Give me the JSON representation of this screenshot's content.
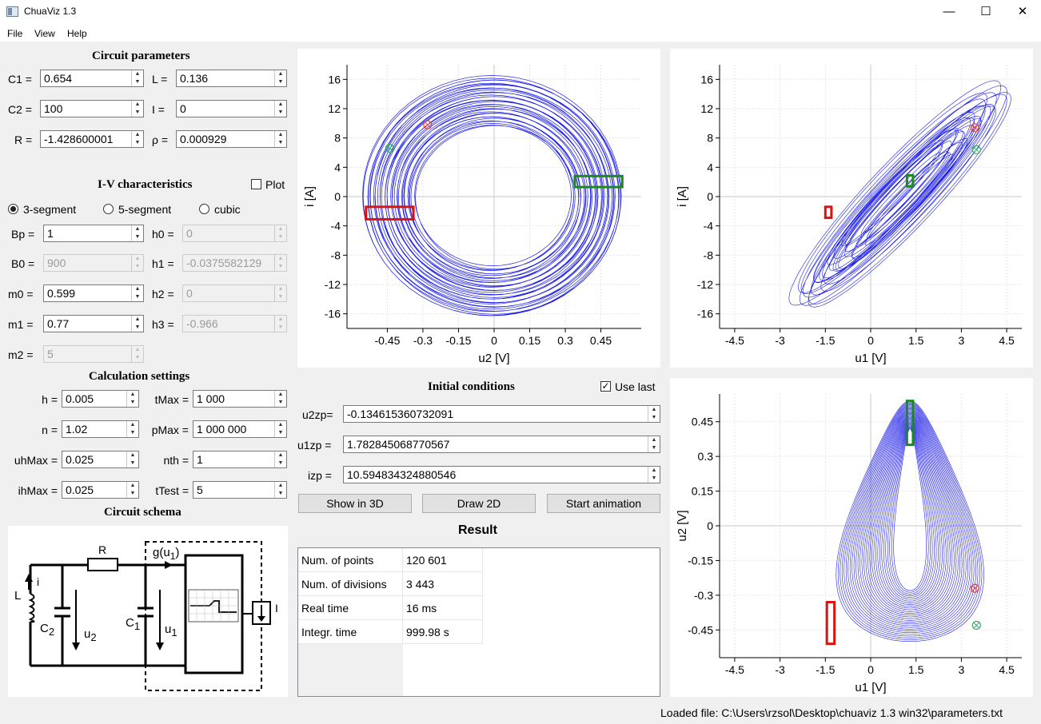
{
  "window": {
    "title": "ChuaViz 1.3",
    "minimize": "—",
    "maximize": "☐",
    "close": "✕"
  },
  "menu": [
    "File",
    "View",
    "Help"
  ],
  "circuit": {
    "heading": "Circuit parameters",
    "c1": {
      "label": "C1 =",
      "value": "0.654"
    },
    "l": {
      "label": "L =",
      "value": "0.136"
    },
    "c2": {
      "label": "C2 =",
      "value": "100"
    },
    "i": {
      "label": "I =",
      "value": "0"
    },
    "r": {
      "label": "R =",
      "value": "-1.428600001"
    },
    "rho": {
      "label": "ρ =",
      "value": "0.000929"
    }
  },
  "iv": {
    "heading": "I-V characteristics",
    "plot_label": "Plot",
    "radio": [
      "3-segment",
      "5-segment",
      "cubic"
    ],
    "bp": {
      "label": "Bp =",
      "value": "1"
    },
    "h0": {
      "label": "h0 =",
      "value": "0"
    },
    "b0": {
      "label": "B0 =",
      "value": "900"
    },
    "h1": {
      "label": "h1 =",
      "value": "-0.0375582129"
    },
    "m0": {
      "label": "m0 =",
      "value": "0.599"
    },
    "h2": {
      "label": "h2 =",
      "value": "0"
    },
    "m1": {
      "label": "m1 =",
      "value": "0.77"
    },
    "h3": {
      "label": "h3 =",
      "value": "-0.966"
    },
    "m2": {
      "label": "m2 =",
      "value": "5"
    }
  },
  "calc": {
    "heading": "Calculation settings",
    "h": {
      "label": "h =",
      "value": "0.005"
    },
    "tmax": {
      "label": "tMax =",
      "value": "1 000"
    },
    "n": {
      "label": "n =",
      "value": "1.02"
    },
    "pmax": {
      "label": "pMax =",
      "value": "1 000 000"
    },
    "uhmax": {
      "label": "uhMax =",
      "value": "0.025"
    },
    "nth": {
      "label": "nth =",
      "value": "1"
    },
    "ihmax": {
      "label": "ihMax =",
      "value": "0.025"
    },
    "ttest": {
      "label": "tTest =",
      "value": "5"
    }
  },
  "schema": {
    "heading": "Circuit schema",
    "R": "R",
    "g": "g(u",
    "g_sub": "1",
    "g_close": ")",
    "i": "i",
    "L": "L",
    "C2": "C",
    "C2_sub": "2",
    "u2": "u",
    "u2_sub": "2",
    "C1": "C",
    "C1_sub": "1",
    "u1": "u",
    "u1_sub": "1",
    "I": "I"
  },
  "initial": {
    "heading": "Initial conditions",
    "use_last_label": "Use last",
    "u2zp": {
      "label": "u2zp=",
      "value": "-0.134615360732091"
    },
    "u1zp": {
      "label": "u1zp =",
      "value": "1.782845068770567"
    },
    "izp": {
      "label": "izp =",
      "value": "10.594834324880546"
    }
  },
  "buttons": {
    "show3d": "Show in 3D",
    "draw2d": "Draw 2D",
    "animation": "Start animation"
  },
  "result": {
    "heading": "Result",
    "rows": [
      {
        "key": "Num. of points",
        "value": "120 601"
      },
      {
        "key": "Num. of divisions",
        "value": "3 443"
      },
      {
        "key": "Real time",
        "value": "16 ms"
      },
      {
        "key": "Integr. time",
        "value": "999.98 s"
      }
    ]
  },
  "status": "Loaded file: C:\\Users\\rzsol\\Desktop\\chuaviz 1.3 win32\\parameters.txt",
  "plots": [
    {
      "id": "i-vs-u2",
      "xlabel": "u2 [V]",
      "ylabel": "i [A]",
      "xticks": [
        "-0.45",
        "-0.3",
        "-0.15",
        "0",
        "0.15",
        "0.3",
        "0.45"
      ],
      "yticks": [
        "16",
        "12",
        "8",
        "4",
        "0",
        "-4",
        "-8",
        "-12",
        "-16"
      ]
    },
    {
      "id": "i-vs-u1",
      "xlabel": "u1 [V]",
      "ylabel": "i [A]",
      "xticks": [
        "-4.5",
        "-3",
        "-1.5",
        "0",
        "1.5",
        "3",
        "4.5"
      ],
      "yticks": [
        "16",
        "12",
        "8",
        "4",
        "0",
        "-4",
        "-8",
        "-12",
        "-16"
      ]
    },
    {
      "id": "u2-vs-u1",
      "xlabel": "u1 [V]",
      "ylabel": "u2 [V]",
      "xticks": [
        "-4.5",
        "-3",
        "-1.5",
        "0",
        "1.5",
        "3",
        "4.5"
      ],
      "yticks": [
        "0.45",
        "0.3",
        "0.15",
        "0",
        "-0.15",
        "-0.3",
        "-0.45"
      ]
    }
  ],
  "chart_data": [
    {
      "type": "line",
      "xlabel": "u2 [V]",
      "ylabel": "i [A]",
      "xlim": [
        -0.62,
        0.62
      ],
      "ylim": [
        -18,
        18
      ],
      "series_color": "#1e1ee6",
      "marker_red": [
        -0.28,
        9.8
      ],
      "marker_green": [
        -0.44,
        6.6
      ],
      "box_red": {
        "x": [
          -0.54,
          -0.34
        ],
        "y": [
          -3.1,
          -1.4
        ]
      },
      "box_green": {
        "x": [
          0.34,
          0.54
        ],
        "y": [
          1.3,
          2.8
        ]
      }
    },
    {
      "type": "line",
      "xlabel": "u1 [V]",
      "ylabel": "i [A]",
      "xlim": [
        -5,
        5
      ],
      "ylim": [
        -18,
        18
      ],
      "series_color": "#1e1ee6",
      "marker_red": [
        3.45,
        9.4
      ],
      "marker_green": [
        3.5,
        6.4
      ],
      "box_red": {
        "x": [
          -1.5,
          -1.3
        ],
        "y": [
          -2.9,
          -1.4
        ]
      },
      "box_green": {
        "x": [
          1.2,
          1.4
        ],
        "y": [
          1.4,
          2.9
        ]
      }
    },
    {
      "type": "line",
      "xlabel": "u1 [V]",
      "ylabel": "u2 [V]",
      "xlim": [
        -5,
        5
      ],
      "ylim": [
        -0.57,
        0.57
      ],
      "series_color": "#1e1ee6",
      "marker_red": [
        3.45,
        -0.27
      ],
      "marker_green": [
        3.5,
        -0.43
      ],
      "box_red": {
        "x": [
          -1.45,
          -1.2
        ],
        "y": [
          -0.51,
          -0.33
        ]
      },
      "box_green": {
        "x": [
          1.2,
          1.4
        ],
        "y": [
          0.35,
          0.54
        ]
      }
    }
  ]
}
